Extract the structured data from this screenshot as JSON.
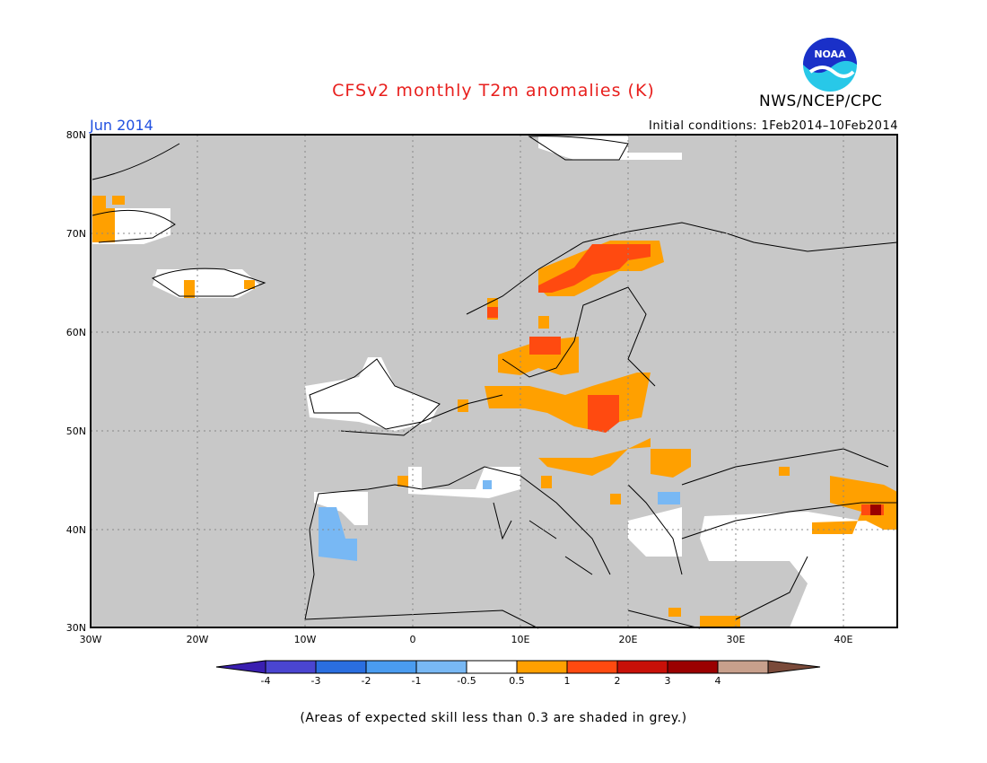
{
  "title": "CFSv2 monthly T2m anomalies (K)",
  "agency": "NWS/NCEP/CPC",
  "logo_text": "NOAA",
  "month": "Jun 2014",
  "initial_conditions": "Initial conditions: 1Feb2014–10Feb2014",
  "footnote": "(Areas of expected skill less than 0.3 are shaded in grey.)",
  "colors": {
    "skill_grey": "#c8c8c8",
    "neutral": "#ffffff",
    "c_m4": "#3a1fb0",
    "c_m3": "#4a45d0",
    "c_m2": "#2a6ee0",
    "c_m1": "#4a9cf0",
    "c_m05": "#78b8f4",
    "c_p05": "#ffa000",
    "c_p1": "#ff4a10",
    "c_p2": "#c81008",
    "c_p3": "#9a0000",
    "c_p4": "#c8a08c",
    "c_gt4": "#7a4a3a"
  },
  "lat_labels": [
    "80N",
    "70N",
    "60N",
    "50N",
    "40N",
    "30N"
  ],
  "lon_labels": [
    "30W",
    "20W",
    "10W",
    "0",
    "10E",
    "20E",
    "30E",
    "40E"
  ],
  "colorbar": {
    "labels": [
      "-4",
      "-3",
      "-2",
      "-1",
      "-0.5",
      "0.5",
      "1",
      "2",
      "3",
      "4"
    ],
    "colors": [
      "#3a1fb0",
      "#4a45d0",
      "#2a6ee0",
      "#4a9cf0",
      "#78b8f4",
      "#ffffff",
      "#ffa000",
      "#ff4a10",
      "#c81008",
      "#9a0000",
      "#c8a08c",
      "#7a4a3a"
    ]
  }
}
